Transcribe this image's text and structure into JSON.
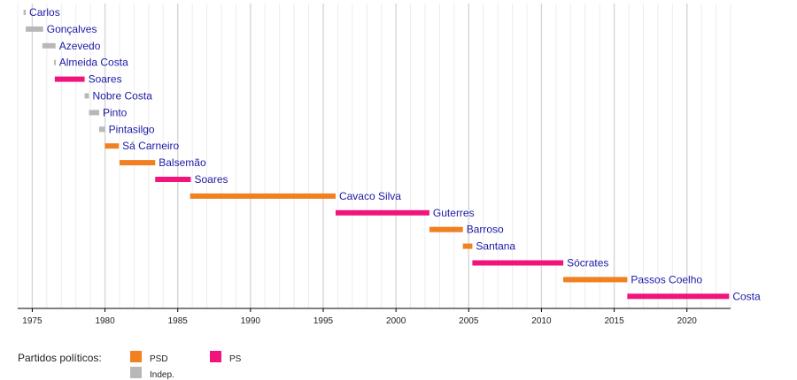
{
  "chart_data": {
    "type": "bar",
    "orientation": "horizontal-timeline",
    "xlim": [
      1974,
      2023
    ],
    "x_ticks": [
      1975,
      1980,
      1985,
      1990,
      1995,
      2000,
      2005,
      2010,
      2015,
      2020
    ],
    "grid": true,
    "colors": {
      "PSD": "#f08020",
      "PS": "#f0147c",
      "Indep.": "#b8b8b8"
    },
    "bars": [
      {
        "name": "Carlos",
        "party": "Indep.",
        "start": 1974.4,
        "end": 1974.55
      },
      {
        "name": "Gonçalves",
        "party": "Indep.",
        "start": 1974.55,
        "end": 1975.75
      },
      {
        "name": "Azevedo",
        "party": "Indep.",
        "start": 1975.7,
        "end": 1976.6
      },
      {
        "name": "Almeida Costa",
        "party": "Indep.",
        "start": 1976.5,
        "end": 1976.6
      },
      {
        "name": "Soares",
        "party": "PS",
        "start": 1976.55,
        "end": 1978.6
      },
      {
        "name": "Nobre Costa",
        "party": "Indep.",
        "start": 1978.6,
        "end": 1978.9
      },
      {
        "name": "Pinto",
        "party": "Indep.",
        "start": 1978.9,
        "end": 1979.6
      },
      {
        "name": "Pintasilgo",
        "party": "Indep.",
        "start": 1979.6,
        "end": 1980.0
      },
      {
        "name": "Sá Carneiro",
        "party": "PSD",
        "start": 1980.0,
        "end": 1980.95
      },
      {
        "name": "Balsemão",
        "party": "PSD",
        "start": 1981.0,
        "end": 1983.45
      },
      {
        "name": "Soares",
        "party": "PS",
        "start": 1983.45,
        "end": 1985.9
      },
      {
        "name": "Cavaco Silva",
        "party": "PSD",
        "start": 1985.85,
        "end": 1995.85
      },
      {
        "name": "Guterres",
        "party": "PS",
        "start": 1995.85,
        "end": 2002.3
      },
      {
        "name": "Barroso",
        "party": "PSD",
        "start": 2002.3,
        "end": 2004.6
      },
      {
        "name": "Santana",
        "party": "PSD",
        "start": 2004.6,
        "end": 2005.25
      },
      {
        "name": "Sócrates",
        "party": "PS",
        "start": 2005.25,
        "end": 2011.5
      },
      {
        "name": "Passos Coelho",
        "party": "PSD",
        "start": 2011.5,
        "end": 2015.9
      },
      {
        "name": "Costa",
        "party": "PS",
        "start": 2015.9,
        "end": 2022.9
      }
    ]
  },
  "legend": {
    "title": "Partidos políticos:",
    "items": [
      {
        "key": "PSD",
        "label": "PSD"
      },
      {
        "key": "Indep.",
        "label": "Indep."
      },
      {
        "key": "PS",
        "label": "PS"
      }
    ]
  }
}
